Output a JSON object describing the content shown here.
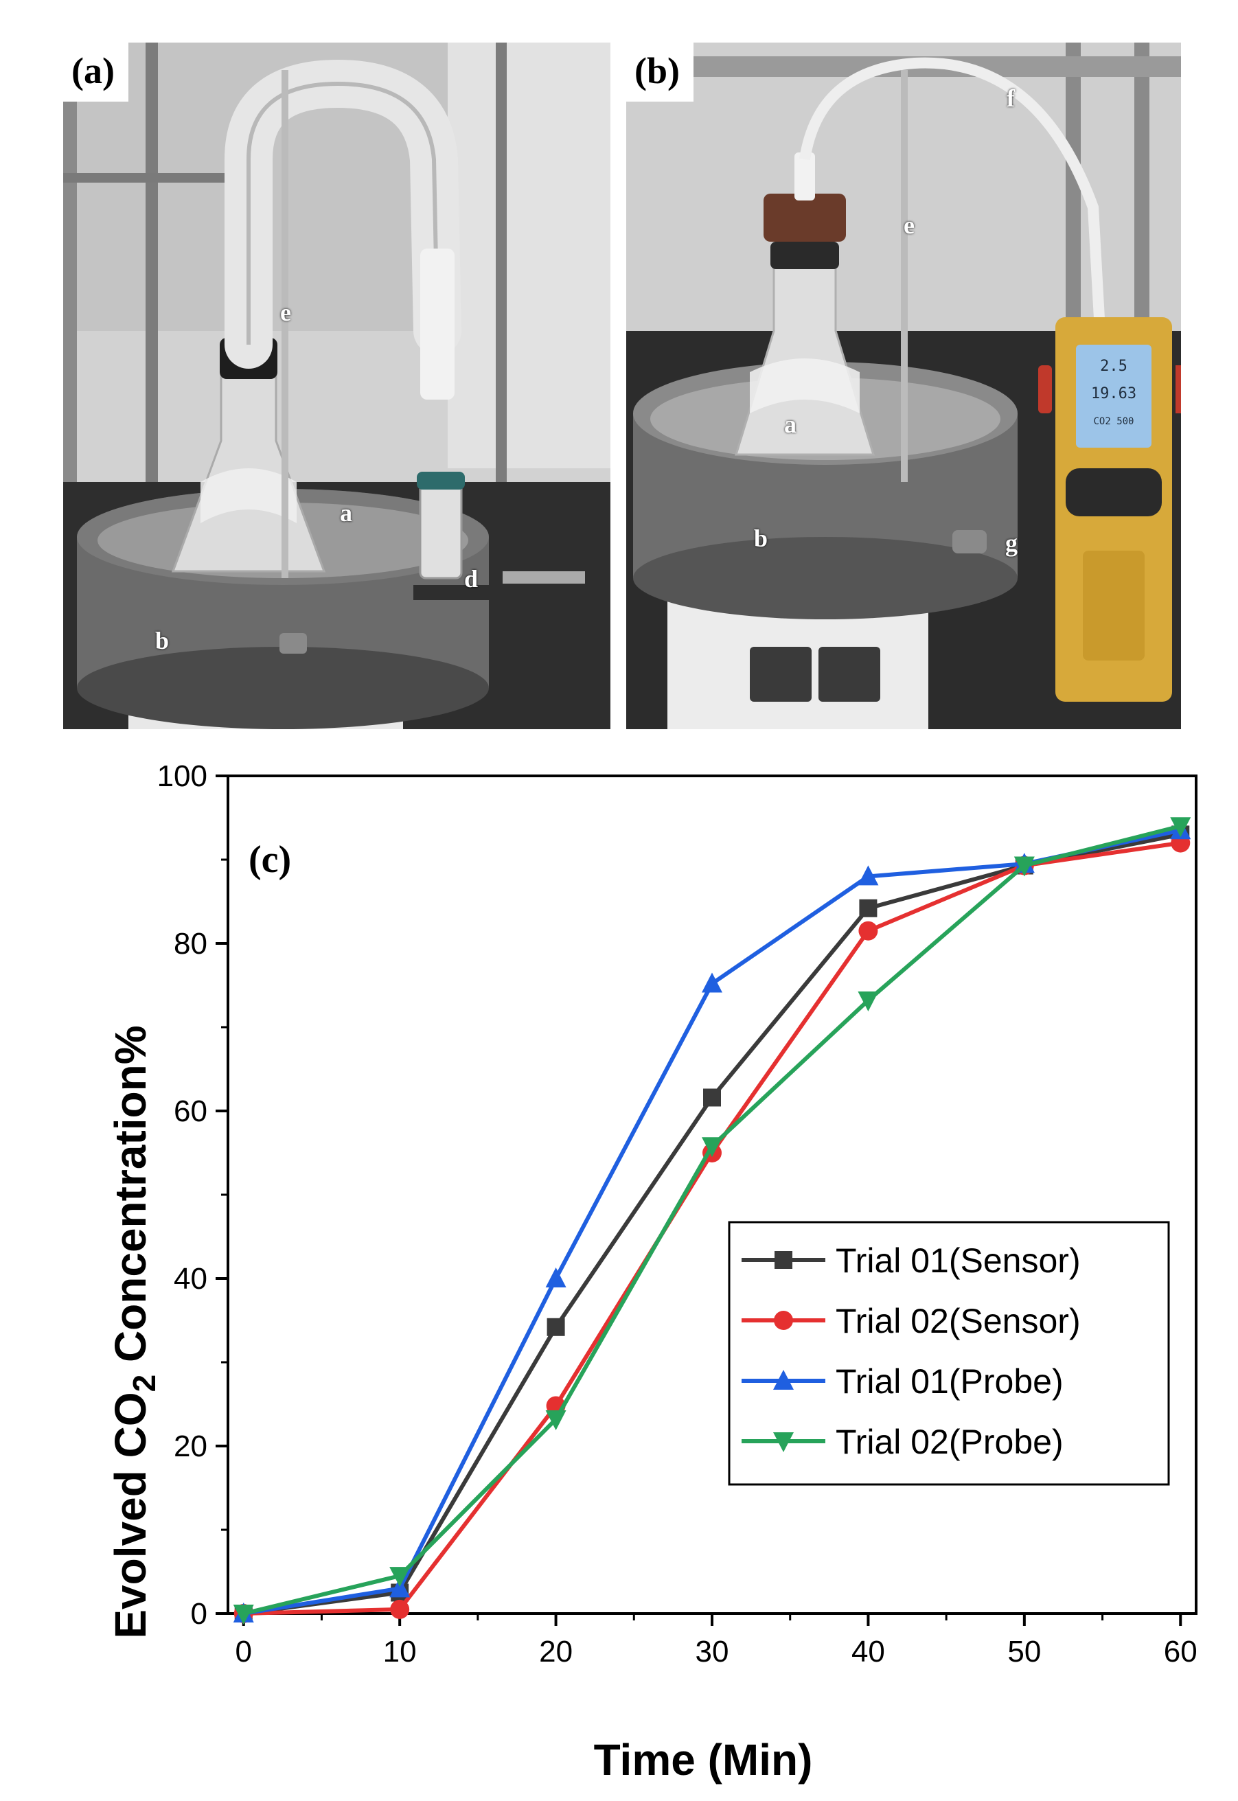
{
  "panel_a": {
    "letter": "(a)",
    "labels": {
      "a": "a",
      "b": "b",
      "d": "d",
      "e": "e"
    }
  },
  "panel_b": {
    "letter": "(b)",
    "labels": {
      "a": "a",
      "b": "b",
      "e": "e",
      "f": "f",
      "g": "g"
    },
    "meter_readout": {
      "line1": "2.5",
      "line2": "19.63",
      "line3": "CO2 500"
    }
  },
  "chart_data": {
    "type": "line",
    "panel_letter": "(c)",
    "title": "",
    "xlabel": "Time (Min)",
    "ylabel": "Evolved CO2 Concentration%",
    "xlim": [
      -1,
      61
    ],
    "ylim": [
      0,
      100
    ],
    "xticks": [
      0,
      10,
      20,
      30,
      40,
      50,
      60
    ],
    "yticks": [
      0,
      20,
      40,
      60,
      80,
      100
    ],
    "grid": false,
    "legend_position": "lower-right",
    "x": [
      0,
      10,
      20,
      30,
      40,
      50,
      60
    ],
    "series": [
      {
        "name": "Trial 01(Sensor)",
        "marker": "square",
        "color": "#3a3a3a",
        "values": [
          0,
          2.5,
          34.2,
          61.6,
          84.2,
          89.3,
          93
        ]
      },
      {
        "name": "Trial 02(Sensor)",
        "marker": "circle",
        "color": "#e53030",
        "values": [
          0,
          0.5,
          24.8,
          55,
          81.5,
          89.3,
          92
        ]
      },
      {
        "name": "Trial 01(Probe)",
        "marker": "triangle-up",
        "color": "#1f5fe0",
        "values": [
          0,
          3,
          40,
          75.2,
          88,
          89.5,
          93.5
        ]
      },
      {
        "name": "Trial 02(Probe)",
        "marker": "triangle-down",
        "color": "#27a35a",
        "values": [
          0,
          4.5,
          23.2,
          55.8,
          73.2,
          89.3,
          94
        ]
      }
    ]
  }
}
